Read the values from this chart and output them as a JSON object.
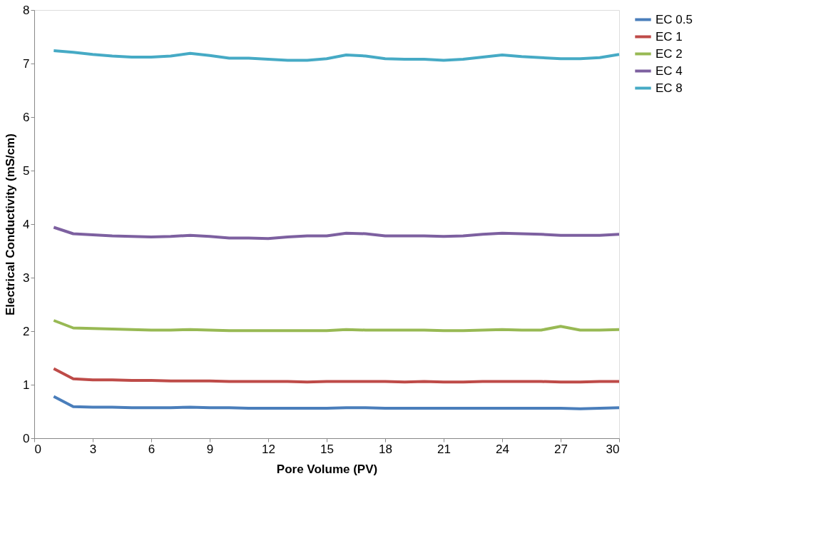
{
  "chart_data": {
    "type": "line",
    "xlabel": "Pore Volume (PV)",
    "ylabel": "Electrical Conductivity (mS/cm)",
    "x": [
      1,
      2,
      3,
      4,
      5,
      6,
      7,
      8,
      9,
      10,
      11,
      12,
      13,
      14,
      15,
      16,
      17,
      18,
      19,
      20,
      21,
      22,
      23,
      24,
      25,
      26,
      27,
      28,
      29,
      30
    ],
    "xlim": [
      0,
      30
    ],
    "xticks": [
      0,
      3,
      6,
      9,
      12,
      15,
      18,
      21,
      24,
      27,
      30
    ],
    "ylim": [
      0,
      8
    ],
    "yticks": [
      0,
      1,
      2,
      3,
      4,
      5,
      6,
      7,
      8
    ],
    "grid": false,
    "legend": "right",
    "marker": "none",
    "line_style": "solid",
    "series": [
      {
        "name": "EC 0.5",
        "color": "#4a7ebb",
        "values": [
          0.78,
          0.59,
          0.58,
          0.58,
          0.57,
          0.57,
          0.57,
          0.58,
          0.57,
          0.57,
          0.56,
          0.56,
          0.56,
          0.56,
          0.56,
          0.57,
          0.57,
          0.56,
          0.56,
          0.56,
          0.56,
          0.56,
          0.56,
          0.56,
          0.56,
          0.56,
          0.56,
          0.55,
          0.56,
          0.57
        ]
      },
      {
        "name": "EC 1",
        "color": "#be4b48",
        "values": [
          1.3,
          1.11,
          1.09,
          1.09,
          1.08,
          1.08,
          1.07,
          1.07,
          1.07,
          1.06,
          1.06,
          1.06,
          1.06,
          1.05,
          1.06,
          1.06,
          1.06,
          1.06,
          1.05,
          1.06,
          1.05,
          1.05,
          1.06,
          1.06,
          1.06,
          1.06,
          1.05,
          1.05,
          1.06,
          1.06
        ]
      },
      {
        "name": "EC 2",
        "color": "#98b954",
        "values": [
          2.2,
          2.06,
          2.05,
          2.04,
          2.03,
          2.02,
          2.02,
          2.03,
          2.02,
          2.01,
          2.01,
          2.01,
          2.01,
          2.01,
          2.01,
          2.03,
          2.02,
          2.02,
          2.02,
          2.02,
          2.01,
          2.01,
          2.02,
          2.03,
          2.02,
          2.02,
          2.09,
          2.02,
          2.02,
          2.03
        ]
      },
      {
        "name": "EC 4",
        "color": "#7d60a0",
        "values": [
          3.94,
          3.82,
          3.8,
          3.78,
          3.77,
          3.76,
          3.77,
          3.79,
          3.77,
          3.74,
          3.74,
          3.73,
          3.76,
          3.78,
          3.78,
          3.83,
          3.82,
          3.78,
          3.78,
          3.78,
          3.77,
          3.78,
          3.81,
          3.83,
          3.82,
          3.81,
          3.79,
          3.79,
          3.79,
          3.81
        ]
      },
      {
        "name": "EC 8",
        "color": "#46aac5",
        "values": [
          7.24,
          7.21,
          7.17,
          7.14,
          7.12,
          7.12,
          7.14,
          7.19,
          7.15,
          7.1,
          7.1,
          7.08,
          7.06,
          7.06,
          7.09,
          7.16,
          7.14,
          7.09,
          7.08,
          7.08,
          7.06,
          7.08,
          7.12,
          7.16,
          7.13,
          7.11,
          7.09,
          7.09,
          7.11,
          7.17
        ]
      }
    ]
  }
}
